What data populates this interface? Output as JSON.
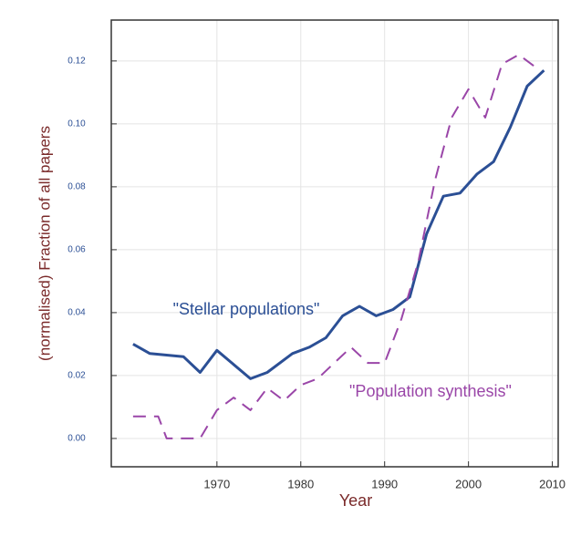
{
  "chart_data": {
    "type": "line",
    "x_label": "Year",
    "y_label": "(normalised) Fraction of all papers",
    "xlim": [
      1957.4,
      2010.7
    ],
    "ylim": [
      -0.009,
      0.133
    ],
    "xticks": [
      1970,
      1980,
      1990,
      2000,
      2010
    ],
    "yticks": [
      {
        "value": 0,
        "label": "0.00"
      },
      {
        "value": 0.02,
        "label": "0.02"
      },
      {
        "value": 0.04,
        "label": "0.04"
      },
      {
        "value": 0.06,
        "label": "0.06"
      },
      {
        "value": 0.08,
        "label": "0.08"
      },
      {
        "value": 0.1,
        "label": "0.10"
      },
      {
        "value": 0.12,
        "label": "0.12"
      }
    ],
    "grid": true,
    "series": [
      {
        "name": "\"Stellar populations\"",
        "color": "#2b4f95",
        "dash": false,
        "x": [
          1960,
          1962,
          1966,
          1968,
          1970,
          1974,
          1976,
          1979,
          1981,
          1983,
          1985,
          1987,
          1989,
          1991,
          1993,
          1995,
          1997,
          1999,
          2001,
          2003,
          2005,
          2007,
          2009
        ],
        "values": [
          0.03,
          0.027,
          0.026,
          0.021,
          0.028,
          0.019,
          0.021,
          0.027,
          0.029,
          0.032,
          0.039,
          0.042,
          0.039,
          0.041,
          0.045,
          0.065,
          0.077,
          0.078,
          0.084,
          0.088,
          0.099,
          0.112,
          0.117
        ]
      },
      {
        "name": "\"Population synthesis\"",
        "color": "#9a46a8",
        "dash": true,
        "x": [
          1960,
          1963,
          1964,
          1968,
          1970,
          1972,
          1974,
          1976,
          1978,
          1980,
          1982,
          1984,
          1986,
          1988,
          1990,
          1992,
          1994,
          1996,
          1998,
          2000,
          2002,
          2004,
          2006,
          2008
        ],
        "values": [
          0.007,
          0.007,
          0.0,
          0.0,
          0.009,
          0.013,
          0.009,
          0.016,
          0.012,
          0.017,
          0.019,
          0.024,
          0.029,
          0.024,
          0.024,
          0.038,
          0.056,
          0.082,
          0.102,
          0.111,
          0.102,
          0.119,
          0.122,
          0.118
        ]
      }
    ]
  }
}
